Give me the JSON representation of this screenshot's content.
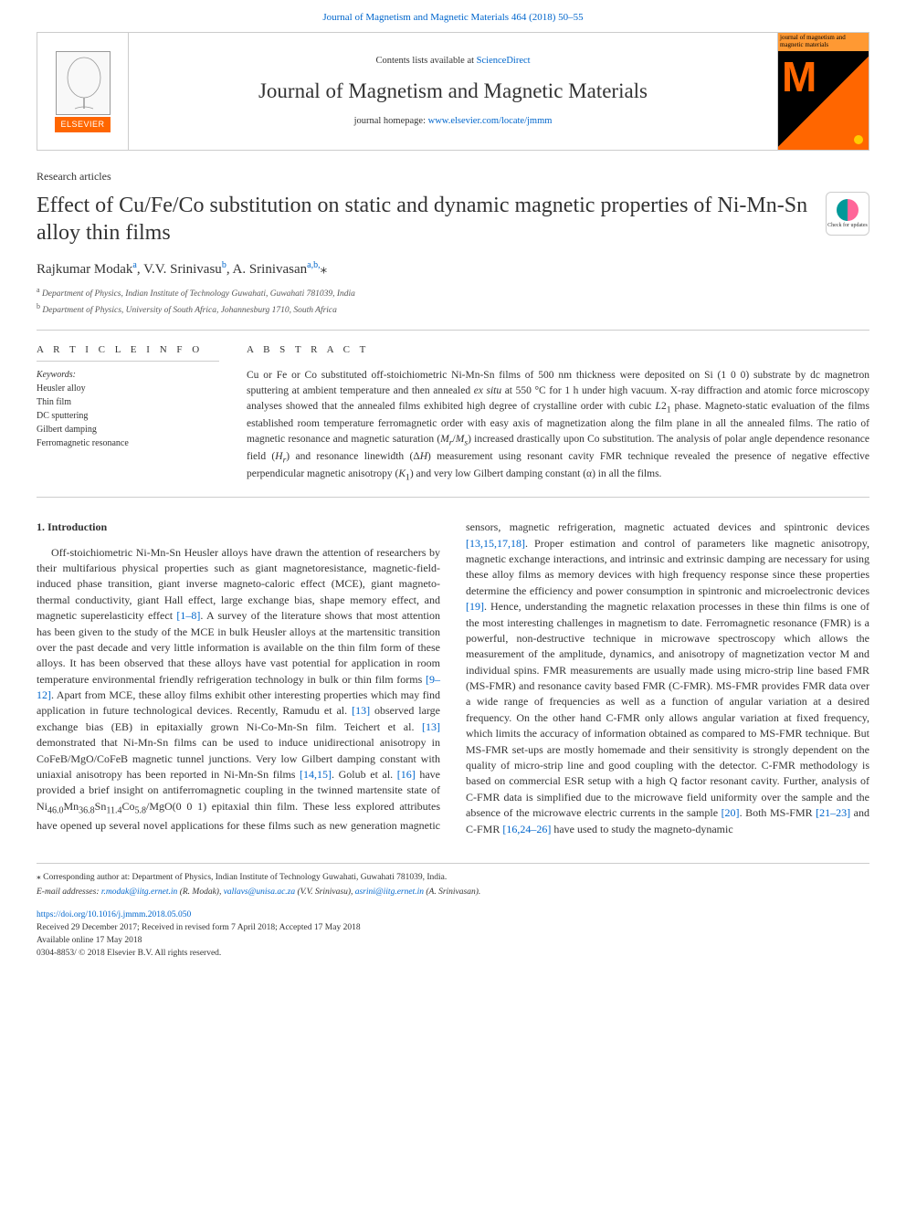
{
  "top_citation": "Journal of Magnetism and Magnetic Materials 464 (2018) 50–55",
  "header": {
    "contents_prefix": "Contents lists available at ",
    "contents_link": "ScienceDirect",
    "journal_name": "Journal of Magnetism and Magnetic Materials",
    "homepage_prefix": "journal homepage: ",
    "homepage_link": "www.elsevier.com/locate/jmmm",
    "elsevier_label": "ELSEVIER",
    "cover_top": "journal of magnetism and magnetic materials",
    "cover_letter": "M"
  },
  "article": {
    "type": "Research articles",
    "title": "Effect of Cu/Fe/Co substitution on static and dynamic magnetic properties of Ni-Mn-Sn alloy thin films",
    "check_updates": "Check for updates",
    "authors_html": "Rajkumar Modak<sup>a</sup>, V.V. Srinivasu<sup>b</sup>, A. Srinivasan<sup>a,b,</sup><span class='star'>⁎</span>",
    "affiliations": [
      "a Department of Physics, Indian Institute of Technology Guwahati, Guwahati 781039, India",
      "b Department of Physics, University of South Africa, Johannesburg 1710, South Africa"
    ]
  },
  "info": {
    "head": "A R T I C L E  I N F O",
    "keywords_label": "Keywords:",
    "keywords": [
      "Heusler alloy",
      "Thin film",
      "DC sputtering",
      "Gilbert damping",
      "Ferromagnetic resonance"
    ]
  },
  "abstract": {
    "head": "A B S T R A C T",
    "text": "Cu or Fe or Co substituted off-stoichiometric Ni-Mn-Sn films of 500 nm thickness were deposited on Si (1 0 0) substrate by dc magnetron sputtering at ambient temperature and then annealed <i>ex situ</i> at 550 °C for 1 h under high vacuum. X-ray diffraction and atomic force microscopy analyses showed that the annealed films exhibited high degree of crystalline order with cubic <i>L</i>2<sub>1</sub> phase. Magneto-static evaluation of the films established room temperature ferromagnetic order with easy axis of magnetization along the film plane in all the annealed films. The ratio of magnetic resonance and magnetic saturation (<i>M<sub>r</sub></i>/<i>M<sub>s</sub></i>) increased drastically upon Co substitution. The analysis of polar angle dependence resonance field (<i>H<sub>r</sub></i>) and resonance linewidth (Δ<i>H</i>) measurement using resonant cavity FMR technique revealed the presence of negative effective perpendicular magnetic anisotropy (<i>K</i><sub>1</sub>) and very low Gilbert damping constant (α) in all the films."
  },
  "introduction": {
    "head": "1. Introduction",
    "body_html": "Off-stoichiometric Ni-Mn-Sn Heusler alloys have drawn the attention of researchers by their multifarious physical properties such as giant magnetoresistance, magnetic-field-induced phase transition, giant inverse magneto-caloric effect (MCE), giant magneto-thermal conductivity, giant Hall effect, large exchange bias, shape memory effect, and magnetic superelasticity effect <span class='ref-link'>[1–8]</span>. A survey of the literature shows that most attention has been given to the study of the MCE in bulk Heusler alloys at the martensitic transition over the past decade and very little information is available on the thin film form of these alloys. It has been observed that these alloys have vast potential for application in room temperature environmental friendly refrigeration technology in bulk or thin film forms <span class='ref-link'>[9–12]</span>. Apart from MCE, these alloy films exhibit other interesting properties which may find application in future technological devices. Recently, Ramudu et al. <span class='ref-link'>[13]</span> observed large exchange bias (EB) in epitaxially grown Ni-Co-Mn-Sn film. Teichert et al. <span class='ref-link'>[13]</span> demonstrated that Ni-Mn-Sn films can be used to induce unidirectional anisotropy in CoFeB/MgO/CoFeB magnetic tunnel junctions. Very low Gilbert damping constant with uniaxial anisotropy has been reported in Ni-Mn-Sn films <span class='ref-link'>[14,15]</span>. Golub et al. <span class='ref-link'>[16]</span> have provided a brief insight on antiferromagnetic coupling in the twinned martensite state of Ni<sub>46.0</sub>Mn<sub>36.8</sub>Sn<sub>11.4</sub>Co<sub>5.8</sub>/MgO(0 0 1) epitaxial thin film. These less explored attributes have opened up several novel applications for these films such as new generation magnetic sensors, magnetic refrigeration, magnetic actuated devices and spintronic devices <span class='ref-link'>[13,15,17,18]</span>. Proper estimation and control of parameters like magnetic anisotropy, magnetic exchange interactions, and intrinsic and extrinsic damping are necessary for using these alloy films as memory devices with high frequency response since these properties determine the efficiency and power consumption in spintronic and microelectronic devices <span class='ref-link'>[19]</span>. Hence, understanding the magnetic relaxation processes in these thin films is one of the most interesting challenges in magnetism to date. Ferromagnetic resonance (FMR) is a powerful, non-destructive technique in microwave spectroscopy which allows the measurement of the amplitude, dynamics, and anisotropy of magnetization vector M and individual spins. FMR measurements are usually made using micro-strip line based FMR (MS-FMR) and resonance cavity based FMR (C-FMR). MS-FMR provides FMR data over a wide range of frequencies as well as a function of angular variation at a desired frequency. On the other hand C-FMR only allows angular variation at fixed frequency, which limits the accuracy of information obtained as compared to MS-FMR technique. But MS-FMR set-ups are mostly homemade and their sensitivity is strongly dependent on the quality of micro-strip line and good coupling with the detector. C-FMR methodology is based on commercial ESR setup with a high Q factor resonant cavity. Further, analysis of C-FMR data is simplified due to the microwave field uniformity over the sample and the absence of the microwave electric currents in the sample <span class='ref-link'>[20]</span>. Both MS-FMR <span class='ref-link'>[21–23]</span> and C-FMR <span class='ref-link'>[16,24–26]</span> have used to study the magneto-dynamic"
  },
  "footer": {
    "corr": "⁎ Corresponding author at: Department of Physics, Indian Institute of Technology Guwahati, Guwahati 781039, India.",
    "emails_label": "E-mail addresses:",
    "emails": [
      {
        "addr": "r.modak@iitg.ernet.in",
        "who": "(R. Modak)"
      },
      {
        "addr": "vallavs@unisa.ac.za",
        "who": "(V.V. Srinivasu)"
      },
      {
        "addr": "asrini@iitg.ernet.in",
        "who": "(A. Srinivasan)."
      }
    ],
    "doi": "https://doi.org/10.1016/j.jmmm.2018.05.050",
    "received": "Received 29 December 2017; Received in revised form 7 April 2018; Accepted 17 May 2018",
    "available": "Available online 17 May 2018",
    "copyright": "0304-8853/ © 2018 Elsevier B.V. All rights reserved."
  },
  "colors": {
    "link": "#0066cc",
    "elsevier_orange": "#ff6600",
    "text": "#333333",
    "border": "#cccccc"
  }
}
